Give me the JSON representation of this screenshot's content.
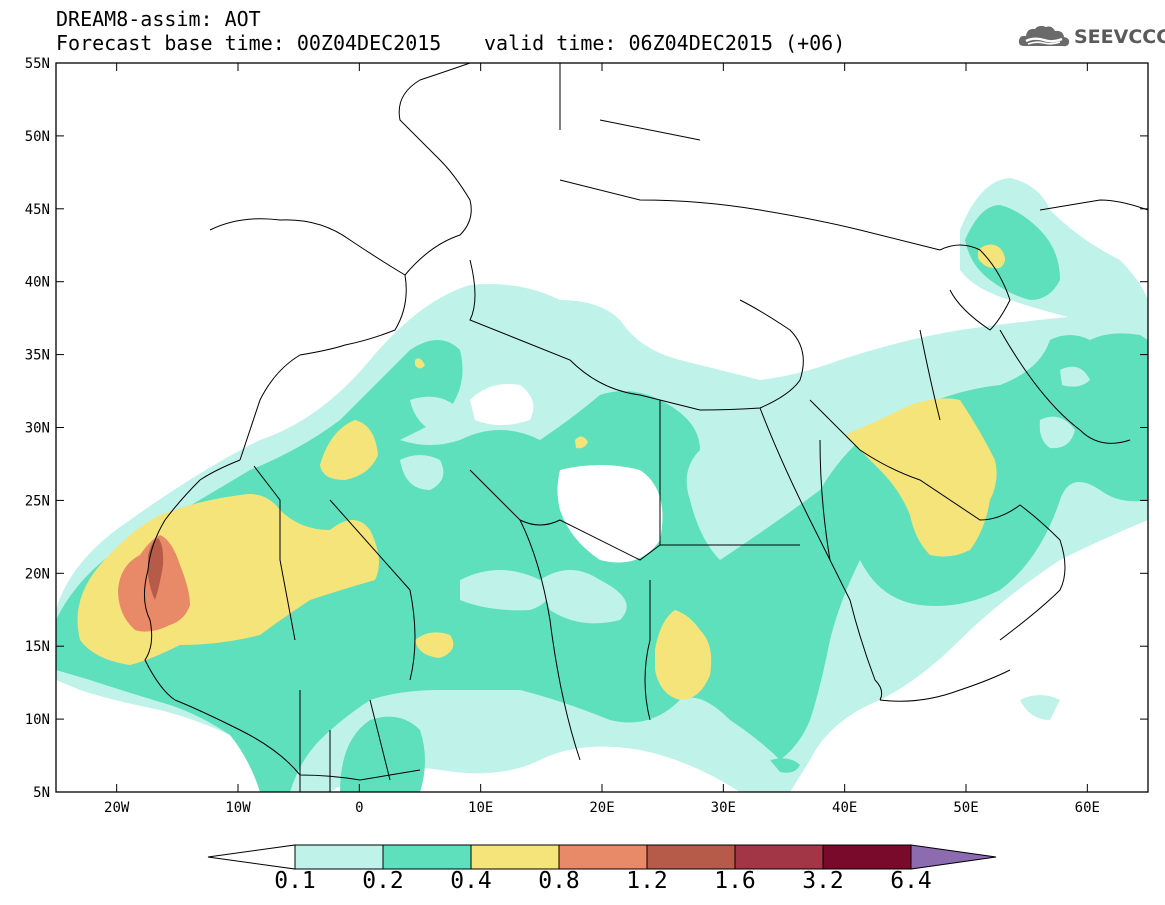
{
  "header": {
    "title_line1": "DREAM8-assim: AOT",
    "title_line2": "Forecast base time: 00Z04DEC2015",
    "valid_time": "valid time: 06Z04DEC2015 (+06)"
  },
  "logo": {
    "text": "SEEVCCC",
    "icon": "cloud-icon"
  },
  "map": {
    "lon_range": [
      -25,
      65
    ],
    "lat_range": [
      5,
      55
    ],
    "lat_ticks": [
      "5N",
      "10N",
      "15N",
      "20N",
      "25N",
      "30N",
      "35N",
      "40N",
      "45N",
      "50N",
      "55N"
    ],
    "lon_ticks": [
      "20W",
      "10W",
      "0",
      "10E",
      "20E",
      "30E",
      "40E",
      "50E",
      "60E"
    ]
  },
  "colorbar": {
    "labels": [
      "0.1",
      "0.2",
      "0.4",
      "0.8",
      "1.2",
      "1.6",
      "3.2",
      "6.4"
    ],
    "colors": {
      "c01": "#bff3ea",
      "c02": "#5ee0bc",
      "c04": "#f5e47a",
      "c08": "#e88a68",
      "c12": "#b65a4a",
      "c16": "#a33646",
      "c32": "#7a0a2c",
      "c64": "#3b2415",
      "over": "#8d6bb0"
    }
  }
}
